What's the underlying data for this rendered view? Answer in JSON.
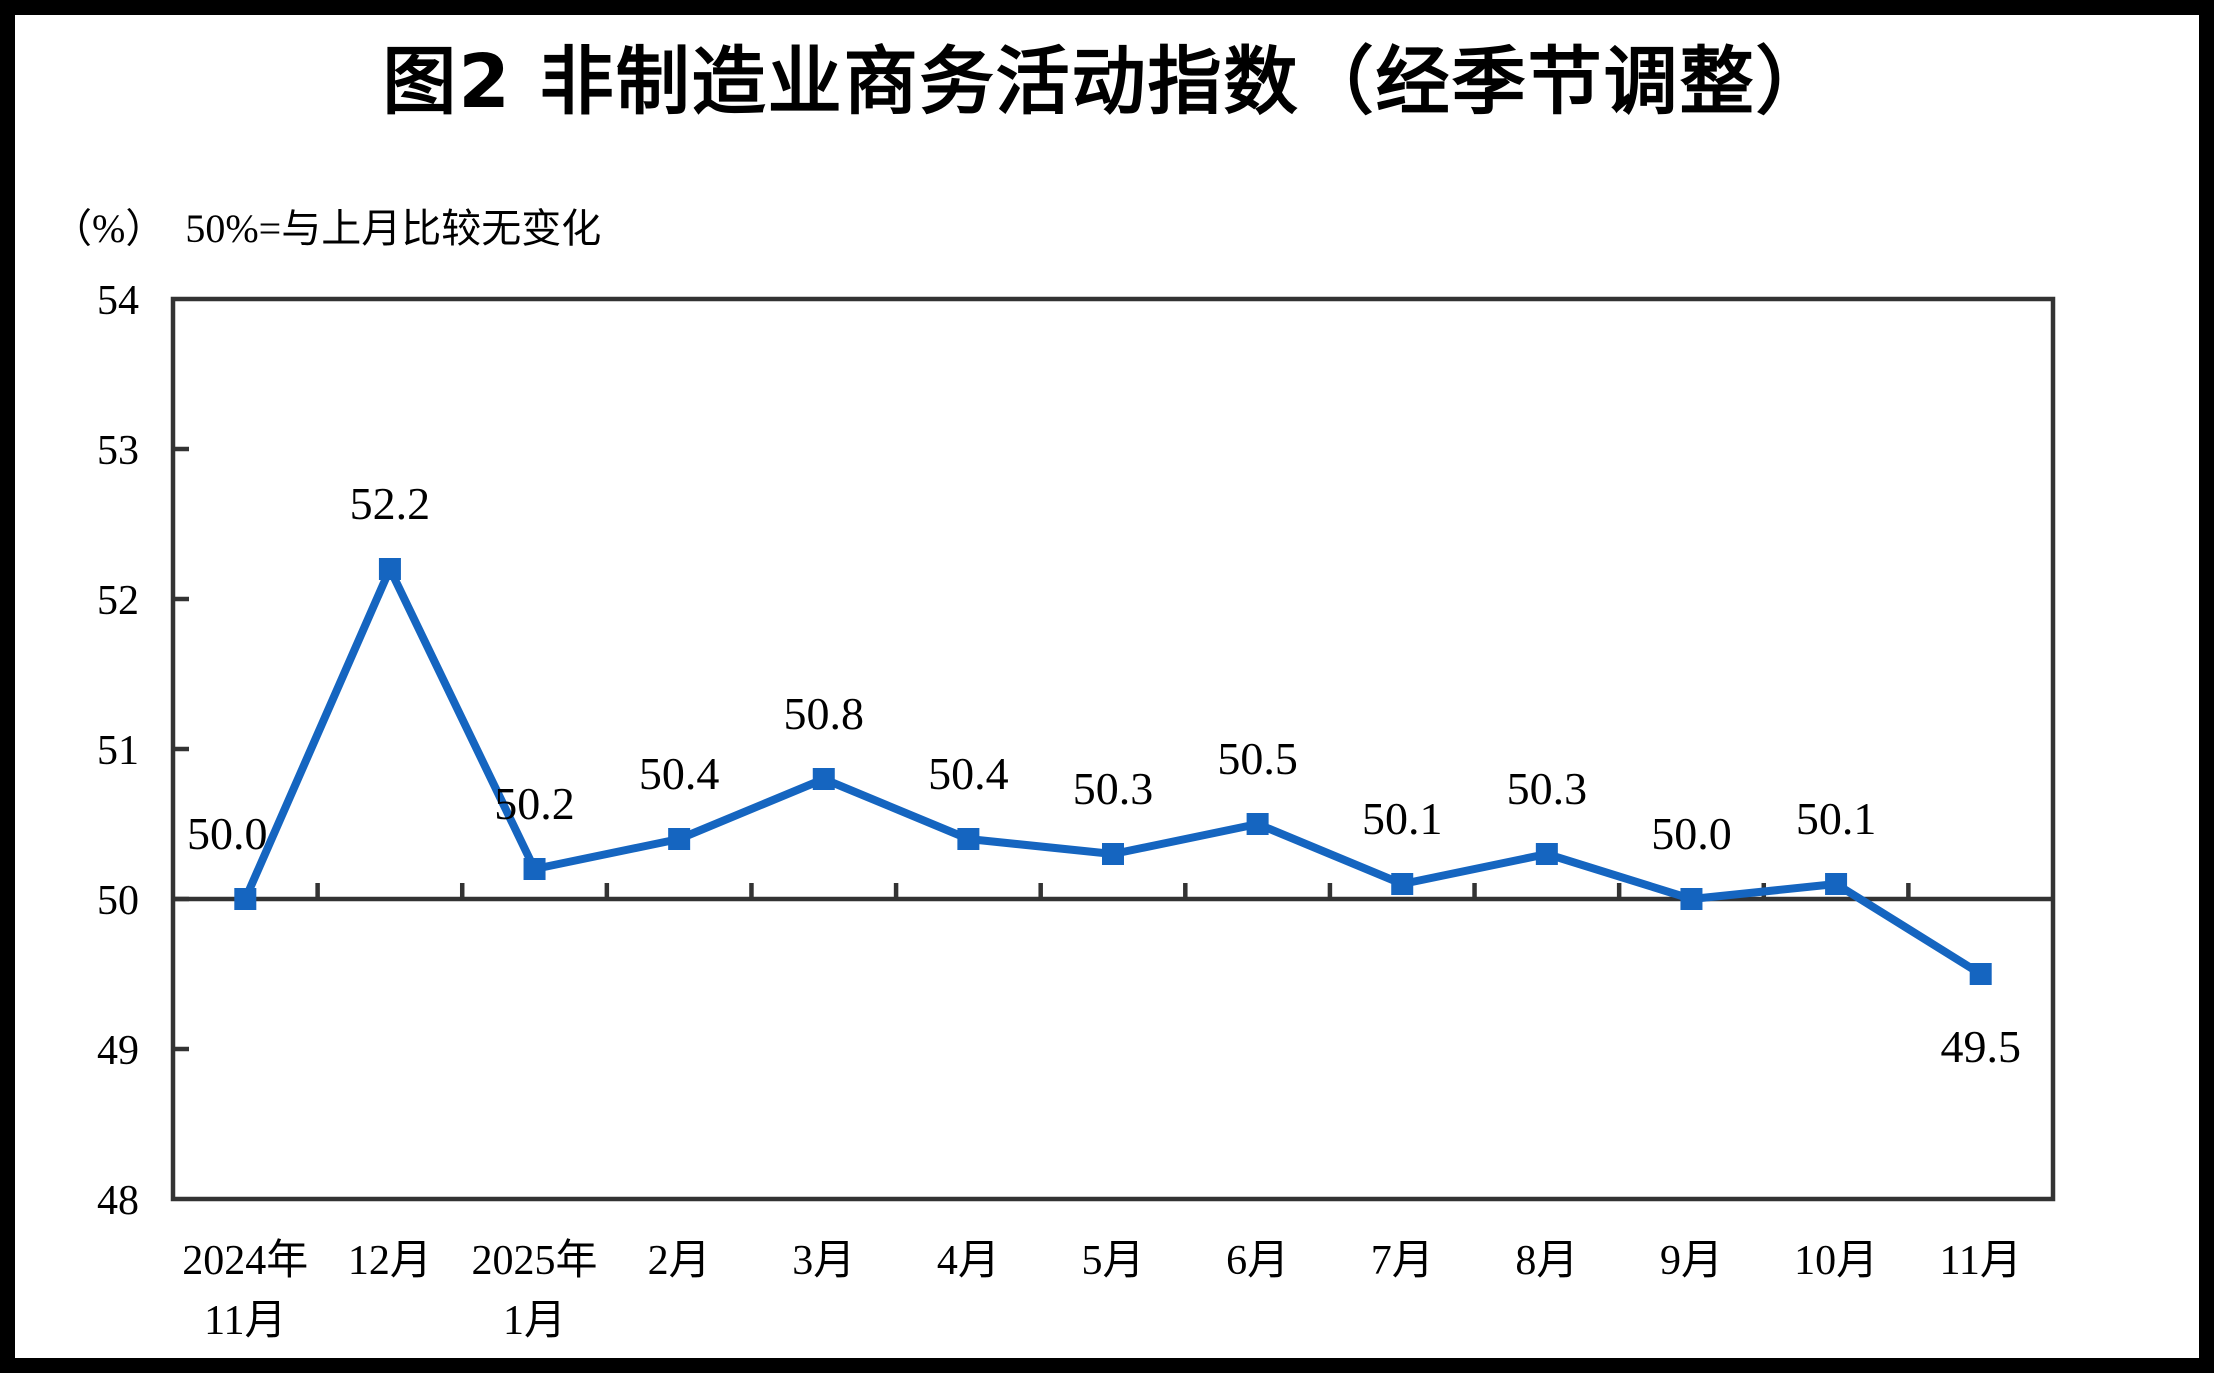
{
  "title": "图2 非制造业商务活动指数（经季节调整）",
  "axis_note": "（%）  50%=与上月比较无变化",
  "chart_data": {
    "type": "line",
    "title": "图2 非制造业商务活动指数（经季节调整）",
    "subtitle": "（%）  50%=与上月比较无变化",
    "unit": "%",
    "categories": [
      "2024年11月",
      "12月",
      "2025年1月",
      "2月",
      "3月",
      "4月",
      "5月",
      "6月",
      "7月",
      "8月",
      "9月",
      "10月",
      "11月"
    ],
    "category_display_lines": [
      [
        "2024年",
        "11月"
      ],
      [
        "12月"
      ],
      [
        "2025年",
        "1月"
      ],
      [
        "2月"
      ],
      [
        "3月"
      ],
      [
        "4月"
      ],
      [
        "5月"
      ],
      [
        "6月"
      ],
      [
        "7月"
      ],
      [
        "8月"
      ],
      [
        "9月"
      ],
      [
        "10月"
      ],
      [
        "11月"
      ]
    ],
    "values": [
      50.0,
      52.2,
      50.2,
      50.4,
      50.8,
      50.4,
      50.3,
      50.5,
      50.1,
      50.3,
      50.0,
      50.1,
      49.5
    ],
    "point_labels": [
      "50.0",
      "52.2",
      "50.2",
      "50.4",
      "50.8",
      "50.4",
      "50.3",
      "50.5",
      "50.1",
      "50.3",
      "50.0",
      "50.1",
      "49.5"
    ],
    "ylim": [
      48,
      54
    ],
    "yticks": [
      48,
      49,
      50,
      51,
      52,
      53,
      54
    ],
    "ytick_labels": [
      "48",
      "49",
      "50",
      "51",
      "52",
      "53",
      "54"
    ],
    "axis_crosses_at": 50,
    "grid": false,
    "legend": "none",
    "marker": "square",
    "series_color": "#1565C0",
    "axis_color": "#333333",
    "label_color": "#000000"
  }
}
